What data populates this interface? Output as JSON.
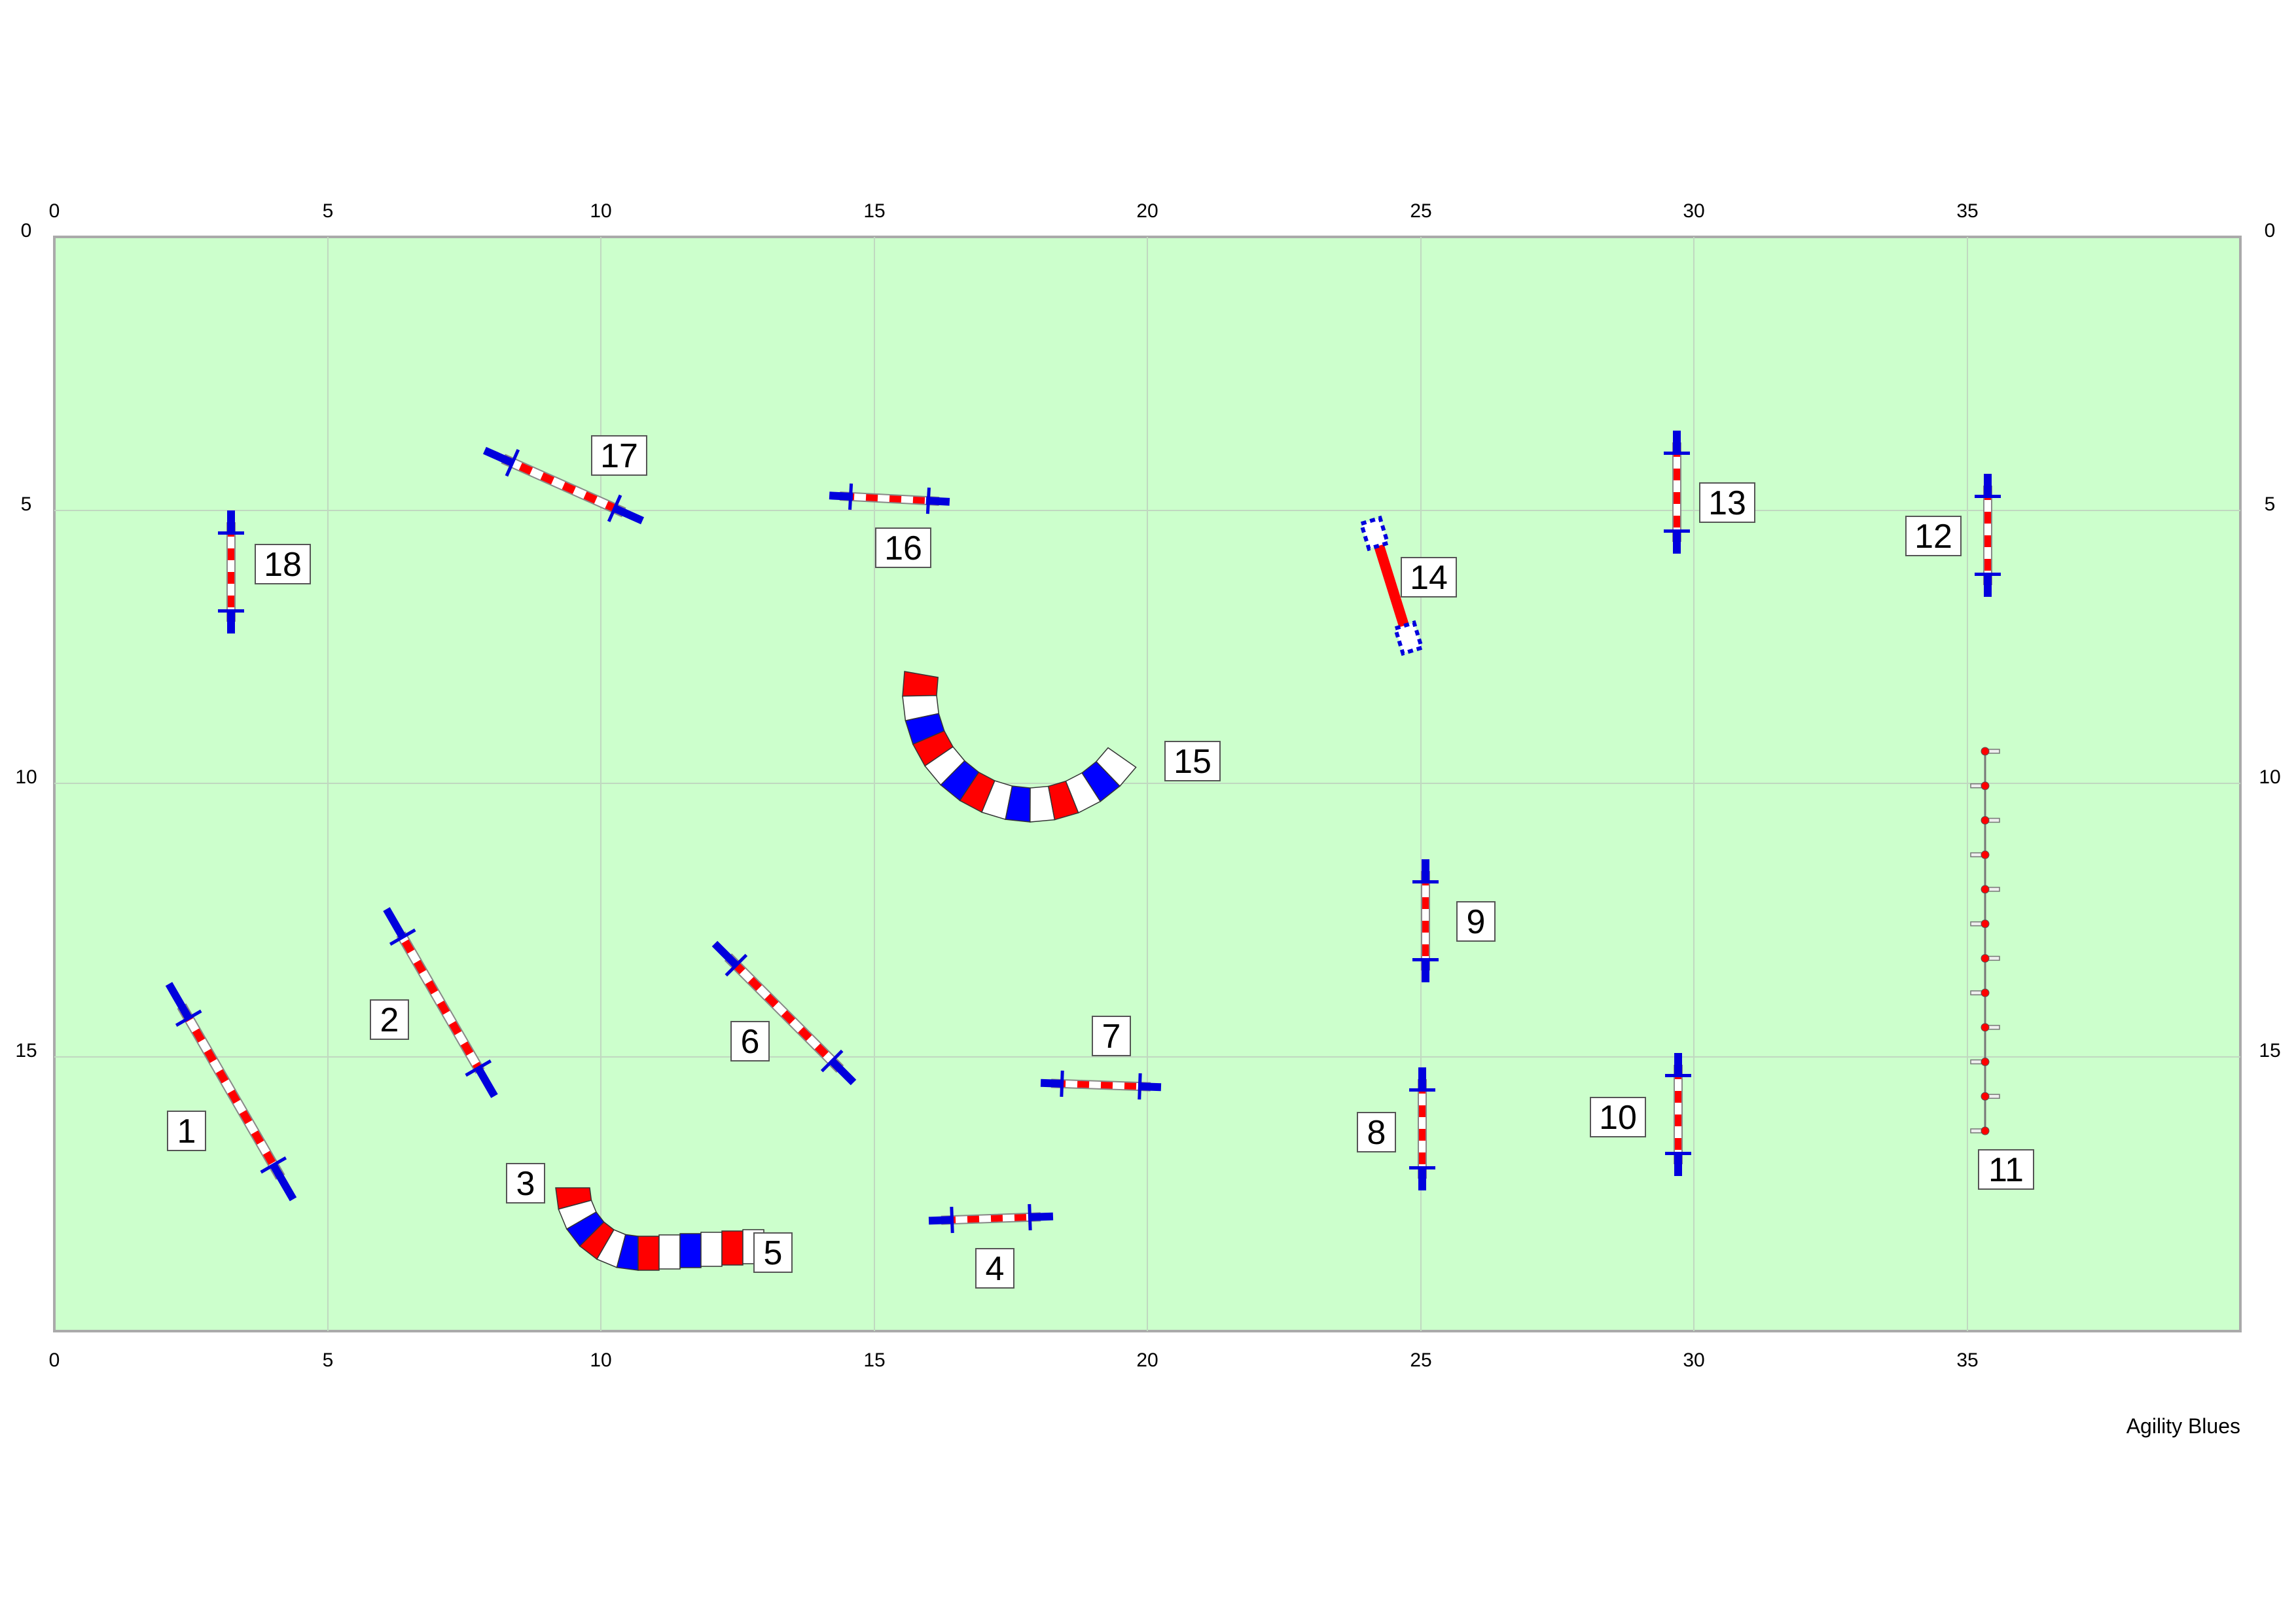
{
  "course": {
    "credit": "Agility Blues",
    "colors": {
      "field": "#ccffcc",
      "field_border": "#aaaaaa",
      "grid": "#c8dcc8",
      "pole_red": "#ff0000",
      "pole_white": "#ffffff",
      "wing_blue": "#0000dd",
      "tunnel_red": "#ff0000",
      "tunnel_blue": "#0000ff",
      "tunnel_white": "#ffffff"
    },
    "axes": {
      "x_ticks": [
        "0",
        "5",
        "10",
        "15",
        "20",
        "25",
        "30",
        "35"
      ],
      "y_ticks": [
        "0",
        "5",
        "10",
        "15"
      ]
    },
    "obstacles": [
      {
        "number": "1",
        "type": "jump"
      },
      {
        "number": "2",
        "type": "jump"
      },
      {
        "number": "3",
        "type": "tunnel-entry"
      },
      {
        "number": "4",
        "type": "jump"
      },
      {
        "number": "5",
        "type": "tunnel-exit"
      },
      {
        "number": "6",
        "type": "jump"
      },
      {
        "number": "7",
        "type": "jump"
      },
      {
        "number": "8",
        "type": "jump"
      },
      {
        "number": "9",
        "type": "jump"
      },
      {
        "number": "10",
        "type": "jump"
      },
      {
        "number": "11",
        "type": "weave-poles"
      },
      {
        "number": "12",
        "type": "jump"
      },
      {
        "number": "13",
        "type": "jump"
      },
      {
        "number": "14",
        "type": "dog-walk"
      },
      {
        "number": "15",
        "type": "tunnel"
      },
      {
        "number": "16",
        "type": "jump"
      },
      {
        "number": "17",
        "type": "jump"
      },
      {
        "number": "18",
        "type": "jump"
      }
    ]
  }
}
